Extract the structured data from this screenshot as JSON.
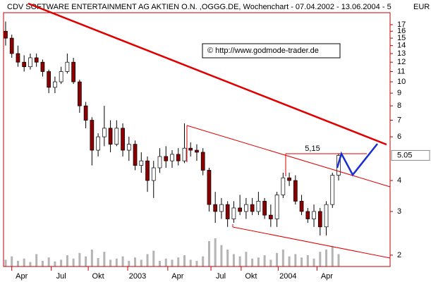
{
  "chart_data": {
    "type": "candlestick",
    "title": "CDV SOFTWARE ENTERTAINMENT AG AKTIEN O.N. ,OGGG.DE, Wochenchart - 07.04.2002 - 13.06.2004 - 5",
    "currency": "EUR",
    "copyright": "© http://www.godmode-trader.de",
    "log_y": true,
    "ylim": [
      1.8,
      19
    ],
    "yticks": [
      2,
      3,
      4,
      6,
      7,
      8,
      9,
      10,
      11,
      12,
      13,
      14,
      15,
      16,
      17
    ],
    "last_price": 5.05,
    "xlim": [
      -0.34,
      62.35
    ],
    "xticks": [
      {
        "value": 2.6,
        "label": "Apr"
      },
      {
        "value": 9.0,
        "label": "Jul"
      },
      {
        "value": 15.0,
        "label": "Okt"
      },
      {
        "value": 21.4,
        "label": "2003"
      },
      {
        "value": 27.9,
        "label": "Apr"
      },
      {
        "value": 34.9,
        "label": "Jul"
      },
      {
        "value": 39.8,
        "label": "Okt"
      },
      {
        "value": 45.8,
        "label": "2004"
      },
      {
        "value": 52.1,
        "label": "Apr"
      }
    ],
    "up_color": "#ffffff",
    "down_color": "#8b0000",
    "volume_color": "#b4b4b4",
    "vlim": [
      0,
      100
    ],
    "open": [
      16,
      15,
      13,
      12,
      11.5,
      12.5,
      12,
      11,
      9.5,
      10,
      11,
      12,
      10,
      8,
      7,
      5.3,
      6,
      6.5,
      5.6,
      6.5,
      5.3,
      5.6,
      4.6,
      4.8,
      4,
      4.5,
      5,
      4.8,
      5.1,
      4.8,
      5.4,
      5.3,
      5.2,
      4.4,
      3.2,
      3.0,
      3.2,
      2.8,
      3.1,
      3.0,
      3.2,
      3.0,
      3.3,
      2.9,
      2.8,
      3.5,
      4.1,
      4.0,
      3.3,
      3.0,
      2.8,
      3.0,
      2.6,
      3.2,
      4.2
    ],
    "high": [
      17.5,
      15.5,
      14,
      12.8,
      13,
      13,
      12.3,
      11.2,
      10.5,
      11.5,
      13,
      12.5,
      10.2,
      8.3,
      7.2,
      6.2,
      8,
      7,
      7,
      6.8,
      6,
      5.8,
      5.2,
      5,
      4.8,
      5.4,
      5.5,
      5.3,
      5.4,
      6.8,
      5.7,
      5.6,
      5.4,
      4.5,
      3.6,
      3.4,
      3.3,
      3.3,
      3.5,
      3.4,
      3.4,
      3.6,
      3.4,
      3.2,
      3.6,
      4.3,
      4.3,
      4.2,
      3.5,
      3.1,
      3.2,
      3.1,
      3.3,
      4.3,
      5.15
    ],
    "low": [
      14,
      12.5,
      11.5,
      11,
      11.2,
      11.5,
      10.5,
      9,
      9,
      9.8,
      10.8,
      9.8,
      7.5,
      6.5,
      4.6,
      5,
      5.5,
      5.2,
      5.5,
      5,
      4.8,
      4.4,
      4.3,
      3.6,
      3.4,
      4.3,
      4.5,
      4.5,
      4.6,
      4.7,
      5,
      4.8,
      4.2,
      3.0,
      2.7,
      2.8,
      2.6,
      2.7,
      2.9,
      2.8,
      2.9,
      2.9,
      2.8,
      2.6,
      2.6,
      3.4,
      3.8,
      3.2,
      2.9,
      2.7,
      2.6,
      2.4,
      2.4,
      3.1,
      4.0
    ],
    "close": [
      15,
      13,
      12,
      11.5,
      12.5,
      12,
      11,
      9.5,
      10,
      11,
      12,
      10,
      8,
      7,
      5.3,
      6,
      6.5,
      5.6,
      6.5,
      5.3,
      5.6,
      4.6,
      4.8,
      4,
      4.5,
      5,
      4.8,
      5.1,
      4.8,
      5.4,
      5.3,
      5.2,
      4.4,
      3.2,
      3.0,
      3.2,
      2.8,
      3.1,
      3.0,
      3.2,
      3.0,
      3.3,
      2.9,
      2.8,
      3.5,
      4.1,
      4.0,
      3.3,
      3.0,
      2.8,
      3.0,
      2.6,
      3.2,
      4.2,
      5.05
    ],
    "volume": [
      12,
      18,
      10,
      14,
      8,
      22,
      10,
      16,
      9,
      12,
      20,
      14,
      24,
      18,
      30,
      15,
      26,
      12,
      14,
      18,
      10,
      16,
      12,
      22,
      28,
      10,
      14,
      12,
      16,
      20,
      12,
      10,
      18,
      45,
      50,
      38,
      30,
      22,
      18,
      26,
      14,
      16,
      20,
      12,
      24,
      30,
      18,
      22,
      16,
      20,
      14,
      26,
      30,
      36,
      22
    ],
    "annotations": [
      {
        "text": "5,15"
      }
    ]
  }
}
